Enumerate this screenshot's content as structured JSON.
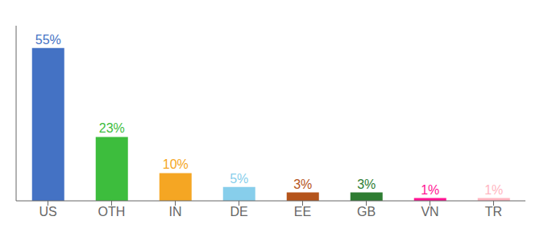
{
  "chart_data": {
    "type": "bar",
    "categories": [
      "US",
      "OTH",
      "IN",
      "DE",
      "EE",
      "GB",
      "VN",
      "TR"
    ],
    "values": [
      55,
      23,
      10,
      5,
      3,
      3,
      1,
      1
    ],
    "value_labels": [
      "55%",
      "23%",
      "10%",
      "5%",
      "3%",
      "3%",
      "1%",
      "1%"
    ],
    "colors": [
      "#4472C4",
      "#3DBD3D",
      "#F5A623",
      "#87CEEB",
      "#B5541B",
      "#2E7D32",
      "#FF1493",
      "#FFB6C1"
    ],
    "ylim": [
      0,
      63
    ],
    "data_labels": true,
    "tick_labels": "x",
    "grid": false
  }
}
